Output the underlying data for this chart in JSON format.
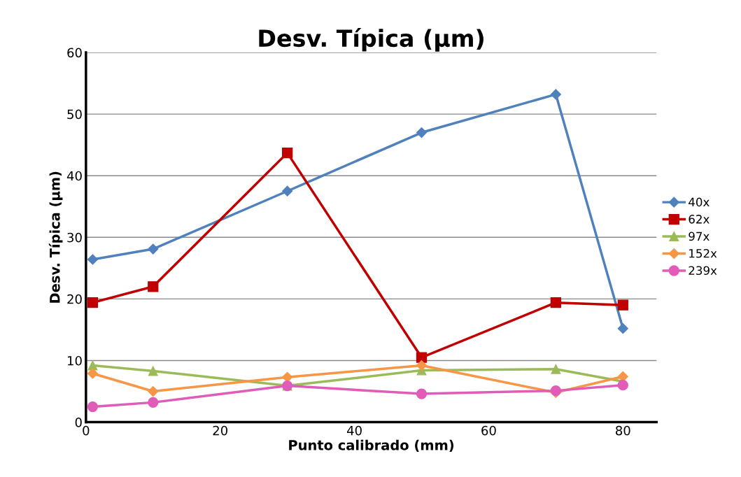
{
  "chart_data": {
    "type": "line",
    "title": "Desv. Típica (µm)",
    "xlabel": "Punto calibrado (mm)",
    "ylabel": "Desv. Típica (µm)",
    "x": [
      1,
      10,
      30,
      50,
      70,
      80
    ],
    "series": [
      {
        "name": "40x",
        "color": "#4f81bd",
        "marker": "diamond",
        "values": [
          26.4,
          28.1,
          37.5,
          47.0,
          53.2,
          15.2
        ]
      },
      {
        "name": "62x",
        "color": "#c00000",
        "marker": "square",
        "values": [
          19.4,
          22.0,
          43.7,
          10.5,
          19.4,
          19.0
        ]
      },
      {
        "name": "97x",
        "color": "#9bbb59",
        "marker": "triangle",
        "values": [
          9.2,
          8.3,
          5.9,
          8.4,
          8.6,
          6.6
        ]
      },
      {
        "name": "152x",
        "color": "#f79646",
        "marker": "diamond",
        "values": [
          7.9,
          5.0,
          7.3,
          9.2,
          4.8,
          7.4
        ]
      },
      {
        "name": "239x",
        "color": "#e05cb8",
        "marker": "circle",
        "values": [
          2.5,
          3.2,
          5.9,
          4.6,
          5.1,
          6.0
        ]
      }
    ],
    "xlim": [
      0,
      85
    ],
    "xticks": [
      0,
      20,
      40,
      60,
      80
    ],
    "ylim": [
      0,
      60
    ],
    "yticks": [
      0,
      10,
      20,
      30,
      40,
      50,
      60
    ],
    "grid": "y",
    "legend": "right",
    "line_style": "solid"
  }
}
